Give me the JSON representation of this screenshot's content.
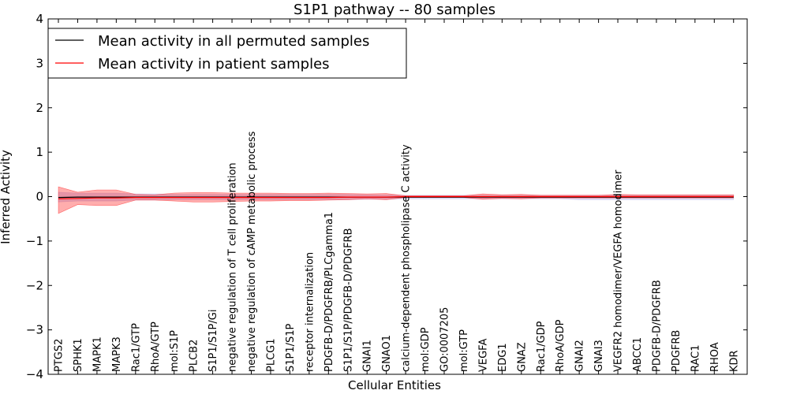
{
  "chart_data": {
    "type": "line",
    "title": "S1P1 pathway -- 80 samples",
    "xlabel": "Cellular Entities",
    "ylabel": "Inferred Activity",
    "ylim": [
      -4,
      4
    ],
    "yticks": [
      -4,
      -3,
      -2,
      -1,
      0,
      1,
      2,
      3,
      4
    ],
    "grid": false,
    "legend_position": "top-left",
    "categories": [
      "PTGS2",
      "SPHK1",
      "MAPK1",
      "MAPK3",
      "Rac1/GTP",
      "RhoA/GTP",
      "mol:S1P",
      "PLCB2",
      "S1P1/S1P/Gi",
      "negative regulation of T cell proliferation",
      "negative regulation of cAMP metabolic process",
      "PLCG1",
      "S1P1/S1P",
      "receptor internalization",
      "PDGFB-D/PDGFRB/PLCgamma1",
      "S1P1/S1P/PDGFB-D/PDGFRB",
      "GNAI1",
      "GNAO1",
      "calcium-dependent phospholipase C activity",
      "mol:GDP",
      "GO:0007205",
      "mol:GTP",
      "VEGFA",
      "EDG1",
      "GNAZ",
      "Rac1/GDP",
      "RhoA/GDP",
      "GNAI2",
      "GNAI3",
      "VEGFR2 homodimer/VEGFA homodimer",
      "ABCC1",
      "PDGFB-D/PDGFRB",
      "PDGFRB",
      "RAC1",
      "RHOA",
      "KDR"
    ],
    "series": [
      {
        "name": "Mean activity in all permuted samples",
        "color": "#000000",
        "band_color": "#b0b0e8",
        "values": [
          -0.02,
          -0.01,
          -0.01,
          -0.01,
          -0.01,
          -0.01,
          -0.01,
          -0.01,
          -0.01,
          -0.01,
          -0.01,
          -0.01,
          -0.01,
          -0.01,
          -0.01,
          -0.01,
          -0.01,
          -0.01,
          -0.01,
          -0.01,
          -0.01,
          -0.01,
          -0.01,
          -0.01,
          -0.01,
          -0.01,
          -0.01,
          -0.01,
          -0.01,
          -0.01,
          -0.01,
          -0.01,
          -0.01,
          -0.01,
          -0.01,
          -0.01
        ],
        "upper": [
          0.1,
          0.08,
          0.08,
          0.08,
          0.06,
          0.06,
          0.05,
          0.05,
          0.05,
          0.05,
          0.05,
          0.05,
          0.05,
          0.05,
          0.05,
          0.05,
          0.04,
          0.04,
          0.03,
          0.03,
          0.03,
          0.03,
          0.03,
          0.03,
          0.03,
          0.03,
          0.03,
          0.03,
          0.03,
          0.03,
          0.03,
          0.03,
          0.03,
          0.03,
          0.03,
          0.03
        ],
        "lower": [
          -0.12,
          -0.1,
          -0.1,
          -0.1,
          -0.08,
          -0.08,
          -0.07,
          -0.07,
          -0.07,
          -0.07,
          -0.07,
          -0.07,
          -0.07,
          -0.07,
          -0.07,
          -0.07,
          -0.06,
          -0.06,
          -0.05,
          -0.05,
          -0.05,
          -0.05,
          -0.05,
          -0.05,
          -0.05,
          -0.05,
          -0.05,
          -0.07,
          -0.07,
          -0.07,
          -0.07,
          -0.07,
          -0.07,
          -0.07,
          -0.07,
          -0.07
        ]
      },
      {
        "name": "Mean activity in patient samples",
        "color": "#ff0000",
        "band_color": "#ff0000",
        "values": [
          -0.05,
          -0.04,
          -0.03,
          -0.03,
          -0.02,
          -0.02,
          -0.02,
          -0.02,
          -0.02,
          -0.02,
          -0.02,
          -0.02,
          -0.02,
          -0.02,
          -0.02,
          -0.01,
          -0.01,
          -0.01,
          0.0,
          0.0,
          0.0,
          0.0,
          0.0,
          0.0,
          0.0,
          0.0,
          0.0,
          0.0,
          0.0,
          0.0,
          0.0,
          0.0,
          0.0,
          0.0,
          0.0,
          0.0
        ],
        "upper": [
          0.22,
          0.1,
          0.15,
          0.15,
          0.05,
          0.04,
          0.08,
          0.09,
          0.09,
          0.08,
          0.08,
          0.08,
          0.07,
          0.07,
          0.08,
          0.07,
          0.06,
          0.07,
          0.02,
          0.02,
          0.02,
          0.02,
          0.06,
          0.04,
          0.05,
          0.03,
          0.03,
          0.03,
          0.03,
          0.05,
          0.04,
          0.04,
          0.04,
          0.04,
          0.04,
          0.04
        ],
        "lower": [
          -0.38,
          -0.18,
          -0.2,
          -0.2,
          -0.08,
          -0.08,
          -0.1,
          -0.12,
          -0.12,
          -0.11,
          -0.1,
          -0.1,
          -0.09,
          -0.09,
          -0.08,
          -0.07,
          -0.05,
          -0.07,
          -0.02,
          -0.02,
          -0.02,
          -0.02,
          -0.06,
          -0.04,
          -0.05,
          -0.03,
          -0.03,
          -0.03,
          -0.03,
          -0.03,
          -0.03,
          -0.03,
          -0.03,
          -0.03,
          -0.03,
          -0.03
        ]
      }
    ]
  }
}
